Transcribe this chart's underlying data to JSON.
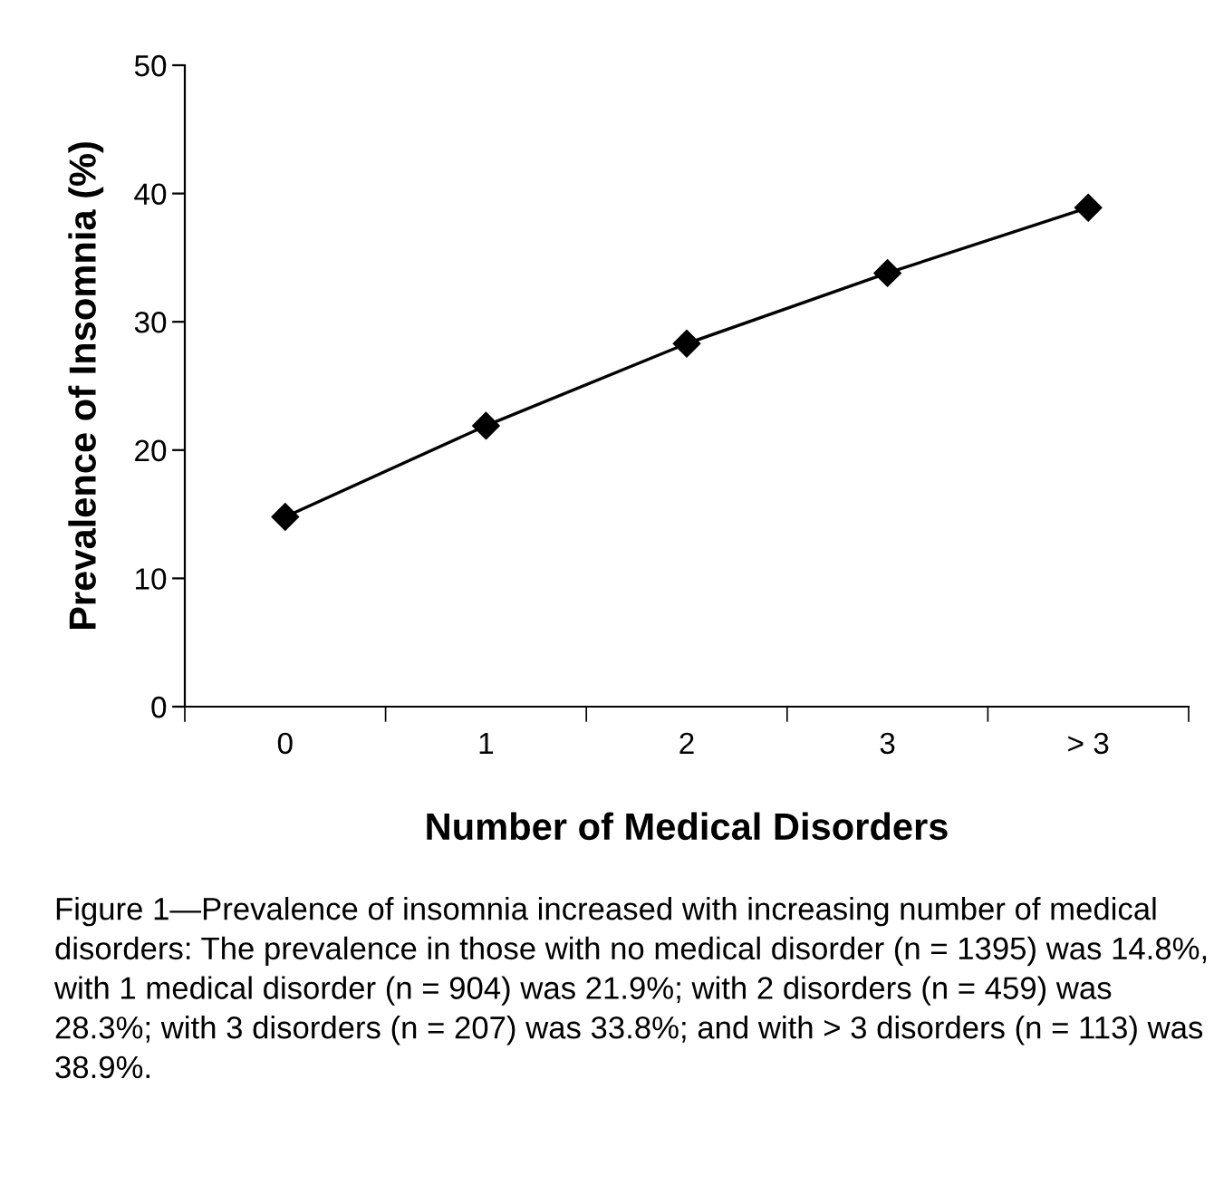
{
  "chart_data": {
    "type": "line",
    "xlabel": "Number of Medical Disorders",
    "ylabel": "Prevalence of Insomnia (%)",
    "categories": [
      "0",
      "1",
      "2",
      "3",
      "> 3"
    ],
    "series": [
      {
        "color": "#000000",
        "values": [
          14.8,
          21.9,
          28.3,
          33.8,
          38.9
        ]
      }
    ],
    "ylim": [
      0,
      50
    ],
    "yticks": [
      0,
      10,
      20,
      30,
      40,
      50
    ],
    "grid": false,
    "marker": "diamond",
    "line_style": "solid",
    "annotations": [
      "Figure 1—Prevalence of insomnia increased with increasing number of medical disorders: The prevalence in those with no medical disorder (n = 1395) was 14.8%, with 1 medical disorder (n = 904) was 21.9%; with 2 disorders (n = 459) was 28.3%; with 3 disorders (n = 207) was 33.8%; and with > 3 disorders (n = 113) was 38.9%."
    ]
  }
}
